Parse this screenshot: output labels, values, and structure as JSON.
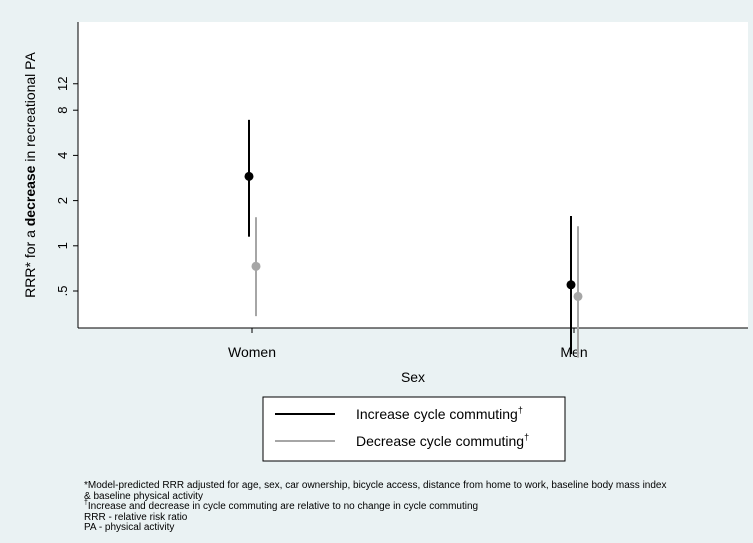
{
  "chart_data": {
    "type": "scatter",
    "subtype": "point-range (estimate with interval)",
    "ylabel_parts": [
      "RRR* for a ",
      "decrease",
      " in recreational PA"
    ],
    "xlabel": "Sex",
    "categories": [
      "Women",
      "Men"
    ],
    "y_scale": "log",
    "y_ticks": [
      0.5,
      1,
      2,
      4,
      8,
      12
    ],
    "y_tick_labels": [
      ".5",
      "1",
      "2",
      "4",
      "8",
      "12"
    ],
    "ylim": [
      0.15,
      14
    ],
    "grid": false,
    "legend_position": "bottom",
    "series": [
      {
        "name": "Increase cycle commuting",
        "name_marker": "†",
        "color": "#000000",
        "points": [
          {
            "category": "Women",
            "estimate": 2.9,
            "lower": 1.15,
            "upper": 6.9
          },
          {
            "category": "Men",
            "estimate": 0.55,
            "lower": 0.19,
            "upper": 1.58
          }
        ]
      },
      {
        "name": "Decrease cycle commuting",
        "name_marker": "†",
        "color": "#a6a6a6",
        "points": [
          {
            "category": "Women",
            "estimate": 0.73,
            "lower": 0.34,
            "upper": 1.55
          },
          {
            "category": "Men",
            "estimate": 0.46,
            "lower": 0.18,
            "upper": 1.35
          }
        ]
      }
    ]
  },
  "footnotes": [
    {
      "marker": "",
      "text": "*Model-predicted RRR adjusted for age, sex, car ownership, bicycle access, distance from home to work, baseline body mass index"
    },
    {
      "marker": "",
      "text": " & baseline physical activity"
    },
    {
      "marker": "†",
      "text": "Increase and decrease in cycle commuting are relative to no change in cycle commuting"
    },
    {
      "marker": "",
      "text": "RRR - relative risk ratio"
    },
    {
      "marker": "",
      "text": "PA - physical activity"
    }
  ]
}
